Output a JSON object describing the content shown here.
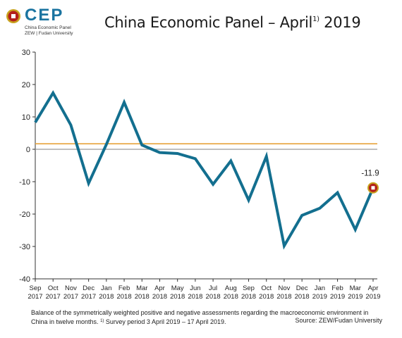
{
  "logo": {
    "word": "CEP",
    "sub_line1": "China Economic Panel",
    "sub_line2": "ZEW | Fudan University",
    "colors": {
      "word": "#1b74a0",
      "mark_outer": "#c8a21e",
      "mark_inner": "#b3201b"
    }
  },
  "header": {
    "title_main": "China Economic Panel – April",
    "title_sup": "1)",
    "title_year": " 2019"
  },
  "footnote": {
    "text": "Balance of the symmetrically weighted positive and negative assessments regarding the macroeconomic environment in China in twelve months.",
    "sup": "1)",
    "text2": " Survey period 3 April 2019 – 17 April 2019."
  },
  "source": "Source: ZEW/Fudan University",
  "chart_data": {
    "type": "line",
    "title": "China Economic Panel – April 2019",
    "xlabel": "",
    "ylabel": "",
    "ylim": [
      -40,
      30
    ],
    "yticks": [
      30,
      20,
      10,
      0,
      -10,
      -20,
      -30,
      -40
    ],
    "grid": false,
    "categories": [
      [
        "Sep",
        "2017"
      ],
      [
        "Oct",
        "2017"
      ],
      [
        "Nov",
        "2017"
      ],
      [
        "Dec",
        "2017"
      ],
      [
        "Jan",
        "2018"
      ],
      [
        "Feb",
        "2018"
      ],
      [
        "Mar",
        "2018"
      ],
      [
        "Apr",
        "2018"
      ],
      [
        "May",
        "2018"
      ],
      [
        "Jun",
        "2018"
      ],
      [
        "Jul",
        "2018"
      ],
      [
        "Aug",
        "2018"
      ],
      [
        "Sep",
        "2018"
      ],
      [
        "Oct",
        "2018"
      ],
      [
        "Nov",
        "2018"
      ],
      [
        "Dec",
        "2018"
      ],
      [
        "Jan",
        "2019"
      ],
      [
        "Feb",
        "2019"
      ],
      [
        "Mar",
        "2019"
      ],
      [
        "Apr",
        "2019"
      ]
    ],
    "series": [
      {
        "values": [
          8.3,
          17.4,
          7.5,
          -10.5,
          1.5,
          14.5,
          1.3,
          -1.0,
          -1.3,
          -2.9,
          -10.8,
          -3.6,
          -15.7,
          -2.2,
          -29.8,
          -20.4,
          -18.2,
          -13.4,
          -24.8,
          -11.9
        ]
      }
    ],
    "reference_line": {
      "value": 1.7
    },
    "annotation": {
      "index": 19,
      "label": "-11.9"
    },
    "colors": {
      "series": "#136f8f",
      "reference_line": "#e8a33b",
      "zero_line": "#999999",
      "marker_outer": "#c8a21e",
      "marker_inner": "#b3201b"
    }
  }
}
